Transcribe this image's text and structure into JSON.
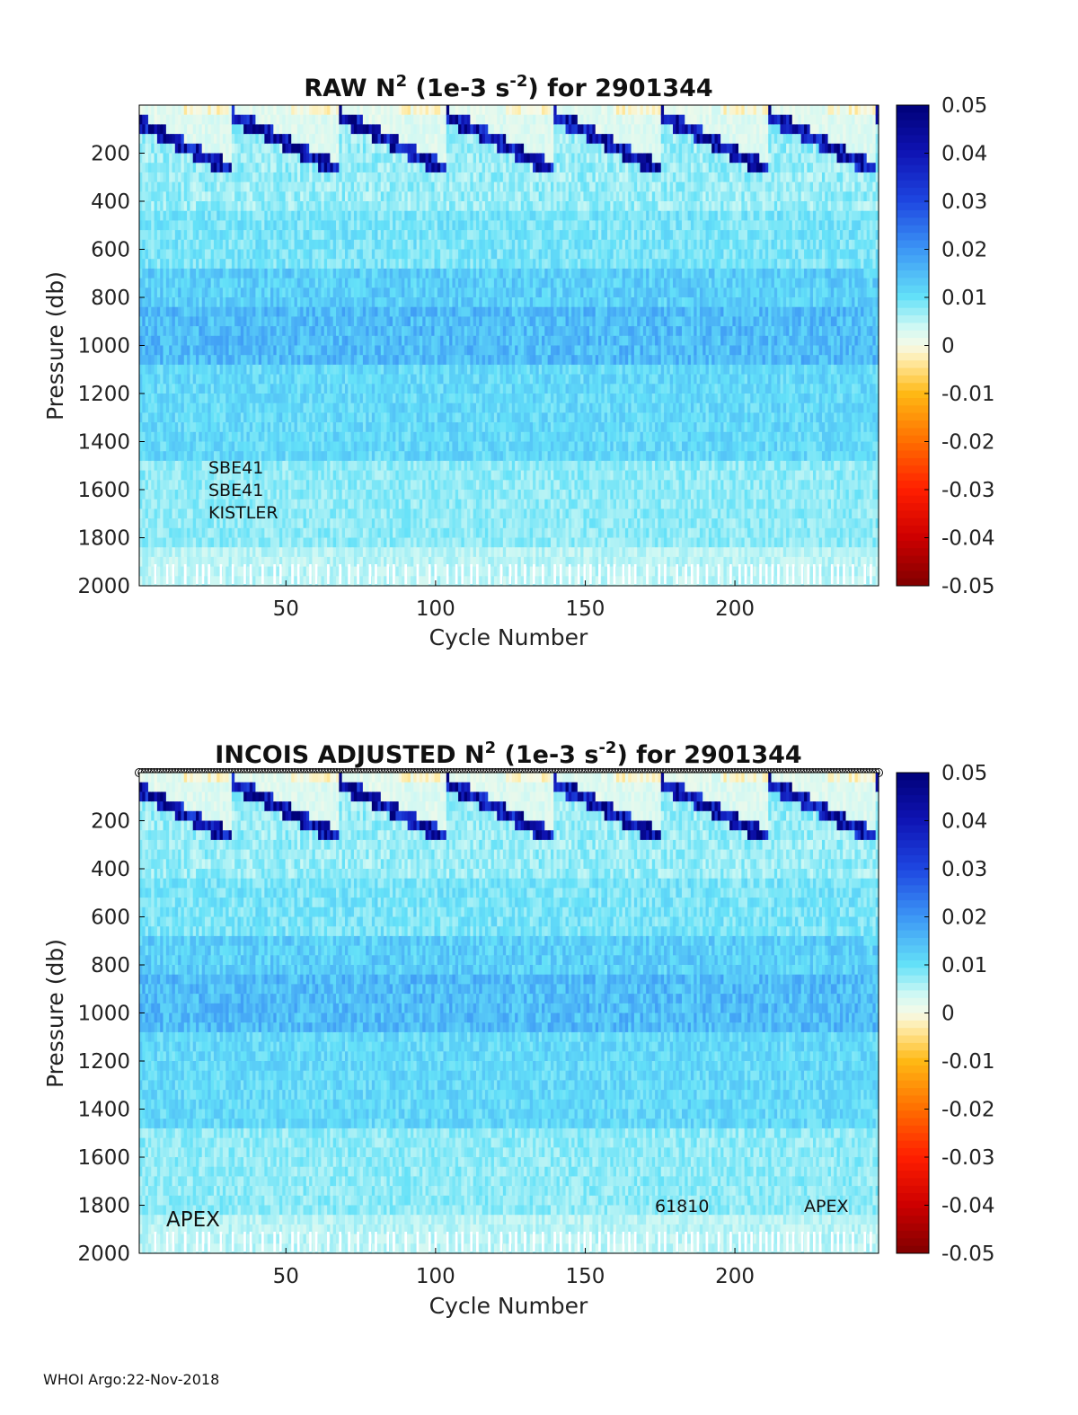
{
  "footer": "WHOI Argo:22-Nov-2018",
  "chart_data": [
    {
      "type": "heatmap",
      "title_main": "RAW N",
      "title_sup": "2",
      "title_mid": " (1e-3 s",
      "title_sup2": "-2",
      "title_end": ") for 2901344",
      "xlabel": "Cycle Number",
      "ylabel": "Pressure (db)",
      "xlim": [
        1,
        248
      ],
      "ylim": [
        0,
        2000
      ],
      "y_reversed": true,
      "xticks": [
        "50",
        "100",
        "150",
        "200"
      ],
      "xtick_values": [
        50,
        100,
        150,
        200
      ],
      "yticks": [
        "200",
        "400",
        "600",
        "800",
        "1000",
        "1200",
        "1400",
        "1600",
        "1800",
        "2000"
      ],
      "ytick_values": [
        200,
        400,
        600,
        800,
        1000,
        1200,
        1400,
        1600,
        1800,
        2000
      ],
      "colorbar": {
        "range": [
          -0.05,
          0.05
        ],
        "ticks": [
          "0.05",
          "0.04",
          "0.03",
          "0.02",
          "0.01",
          "0",
          "-0.01",
          "-0.02",
          "-0.03",
          "-0.04",
          "-0.05"
        ],
        "tick_values": [
          0.05,
          0.04,
          0.03,
          0.02,
          0.01,
          0,
          -0.01,
          -0.02,
          -0.03,
          -0.04,
          -0.05
        ],
        "colormap": "blue-cyan-white-yellow-red"
      },
      "annotations": [
        "SBE41",
        "SBE41",
        "KISTLER"
      ]
    },
    {
      "type": "heatmap",
      "title_main": "INCOIS  ADJUSTED N",
      "title_sup": "2",
      "title_mid": " (1e-3 s",
      "title_sup2": "-2",
      "title_end": ") for 2901344",
      "xlabel": "Cycle Number",
      "ylabel": "Pressure (db)",
      "xlim": [
        1,
        248
      ],
      "ylim": [
        0,
        2000
      ],
      "y_reversed": true,
      "xticks": [
        "50",
        "100",
        "150",
        "200"
      ],
      "xtick_values": [
        50,
        100,
        150,
        200
      ],
      "yticks": [
        "200",
        "400",
        "600",
        "800",
        "1000",
        "1200",
        "1400",
        "1600",
        "1800",
        "2000"
      ],
      "ytick_values": [
        200,
        400,
        600,
        800,
        1000,
        1200,
        1400,
        1600,
        1800,
        2000
      ],
      "colorbar": {
        "range": [
          -0.05,
          0.05
        ],
        "ticks": [
          "0.05",
          "0.04",
          "0.03",
          "0.02",
          "0.01",
          "0",
          "-0.01",
          "-0.02",
          "-0.03",
          "-0.04",
          "-0.05"
        ],
        "tick_values": [
          0.05,
          0.04,
          0.03,
          0.02,
          0.01,
          0,
          -0.01,
          -0.02,
          -0.03,
          -0.04,
          -0.05
        ],
        "colormap": "blue-cyan-white-yellow-red"
      },
      "annotations": [
        "APEX",
        "61810",
        "APEX"
      ]
    }
  ]
}
